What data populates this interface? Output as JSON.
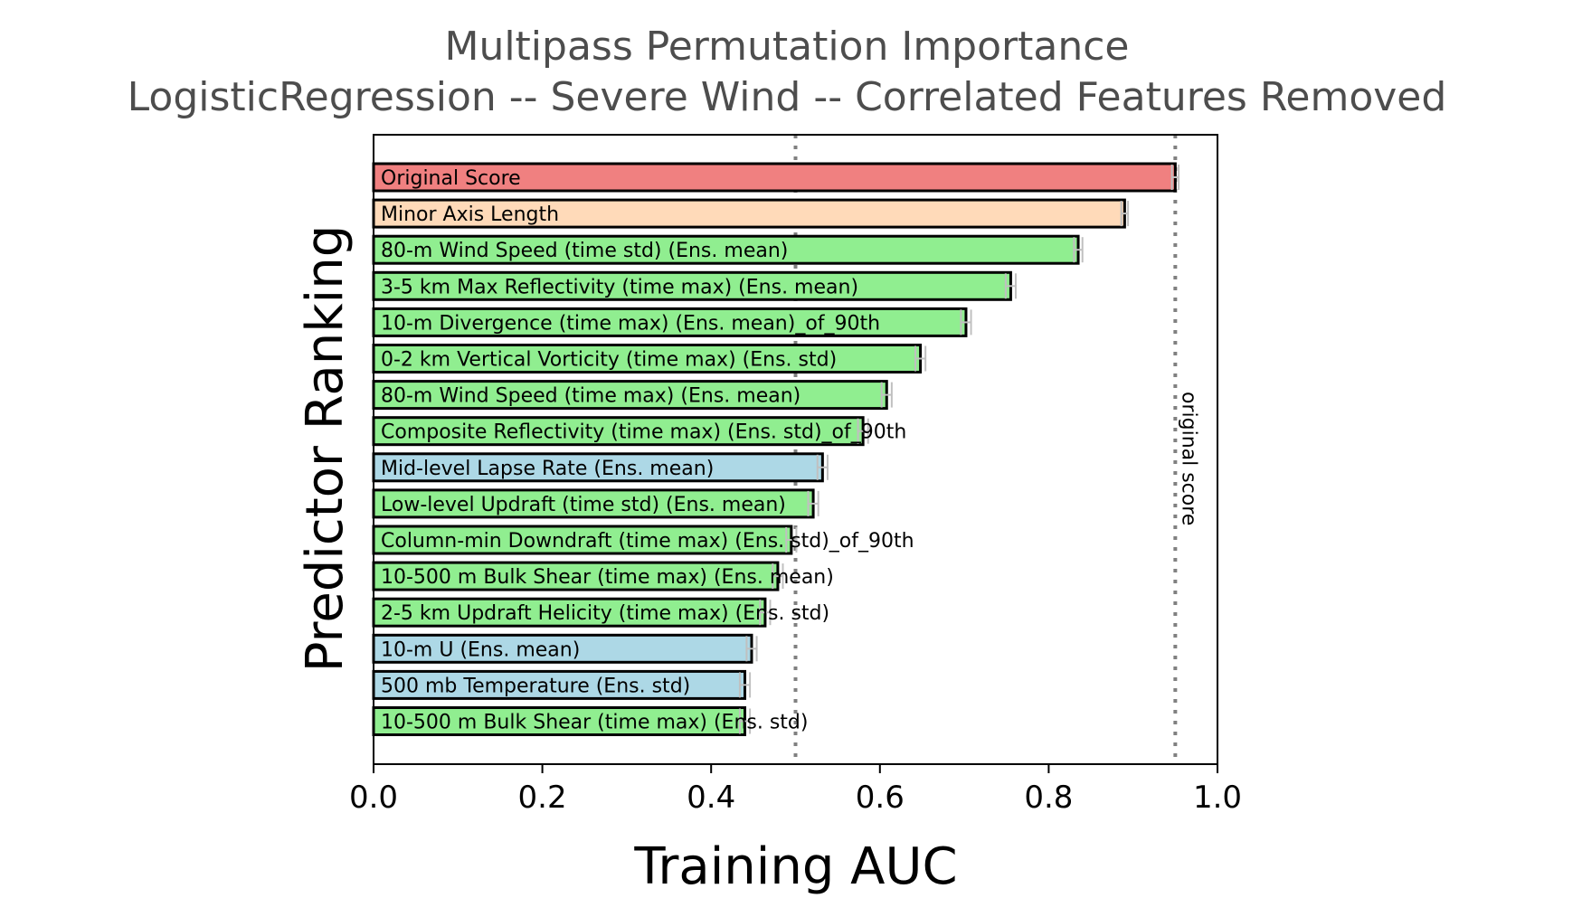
{
  "chart_data": {
    "type": "bar",
    "orientation": "horizontal",
    "title": "Multipass Permutation Importance",
    "subtitle": "LogisticRegression -- Severe Wind -- Correlated Features Removed",
    "xlabel": "Training AUC",
    "ylabel": "Predictor Ranking",
    "xlim": [
      0.0,
      1.0
    ],
    "xticks": [
      "0.0",
      "0.2",
      "0.4",
      "0.6",
      "0.8",
      "1.0"
    ],
    "grid": false,
    "colors": {
      "original": "#f08080",
      "shape": "#ffdab9",
      "ensemble": "#90ee90",
      "environment": "#add8e6",
      "edge": "#000000",
      "error_bar": "#c0c0c0",
      "ref_line": "#808080"
    },
    "bars": [
      {
        "label": "Original Score",
        "value": 0.95,
        "err": 0.004,
        "group": "original"
      },
      {
        "label": "Minor Axis Length",
        "value": 0.89,
        "err": 0.004,
        "group": "shape"
      },
      {
        "label": "80-m Wind Speed (time std) (Ens. mean)",
        "value": 0.835,
        "err": 0.005,
        "group": "ensemble"
      },
      {
        "label": "3-5 km Max Reflectivity (time max) (Ens. mean)",
        "value": 0.755,
        "err": 0.006,
        "group": "ensemble"
      },
      {
        "label": "10-m Divergence (time max) (Ens. mean)_of_90th",
        "value": 0.702,
        "err": 0.006,
        "group": "ensemble"
      },
      {
        "label": "0-2 km Vertical Vorticity (time max) (Ens. std)",
        "value": 0.648,
        "err": 0.006,
        "group": "ensemble"
      },
      {
        "label": "80-m Wind Speed (time max) (Ens. mean)",
        "value": 0.608,
        "err": 0.006,
        "group": "ensemble"
      },
      {
        "label": "Composite Reflectivity (time max) (Ens. std)_of_90th",
        "value": 0.58,
        "err": 0.006,
        "group": "ensemble"
      },
      {
        "label": "Mid-level Lapse Rate (Ens. mean)",
        "value": 0.532,
        "err": 0.006,
        "group": "environment"
      },
      {
        "label": "Low-level Updraft (time std) (Ens. mean)",
        "value": 0.521,
        "err": 0.006,
        "group": "ensemble"
      },
      {
        "label": "Column-min Downdraft (time max) (Ens. std)_of_90th",
        "value": 0.495,
        "err": 0.006,
        "group": "ensemble"
      },
      {
        "label": "10-500 m Bulk Shear (time max) (Ens. mean)",
        "value": 0.479,
        "err": 0.006,
        "group": "ensemble"
      },
      {
        "label": "2-5 km Updraft Helicity (time max) (Ens. std)",
        "value": 0.464,
        "err": 0.006,
        "group": "ensemble"
      },
      {
        "label": "10-m U (Ens. mean)",
        "value": 0.448,
        "err": 0.006,
        "group": "environment"
      },
      {
        "label": "500 mb Temperature (Ens. std)",
        "value": 0.44,
        "err": 0.006,
        "group": "environment"
      },
      {
        "label": "10-500 m Bulk Shear (time max) (Ens. std)",
        "value": 0.44,
        "err": 0.006,
        "group": "ensemble"
      }
    ],
    "reference_lines": [
      {
        "x": 0.5,
        "label": ""
      },
      {
        "x": 0.95,
        "label": "original score"
      }
    ]
  }
}
